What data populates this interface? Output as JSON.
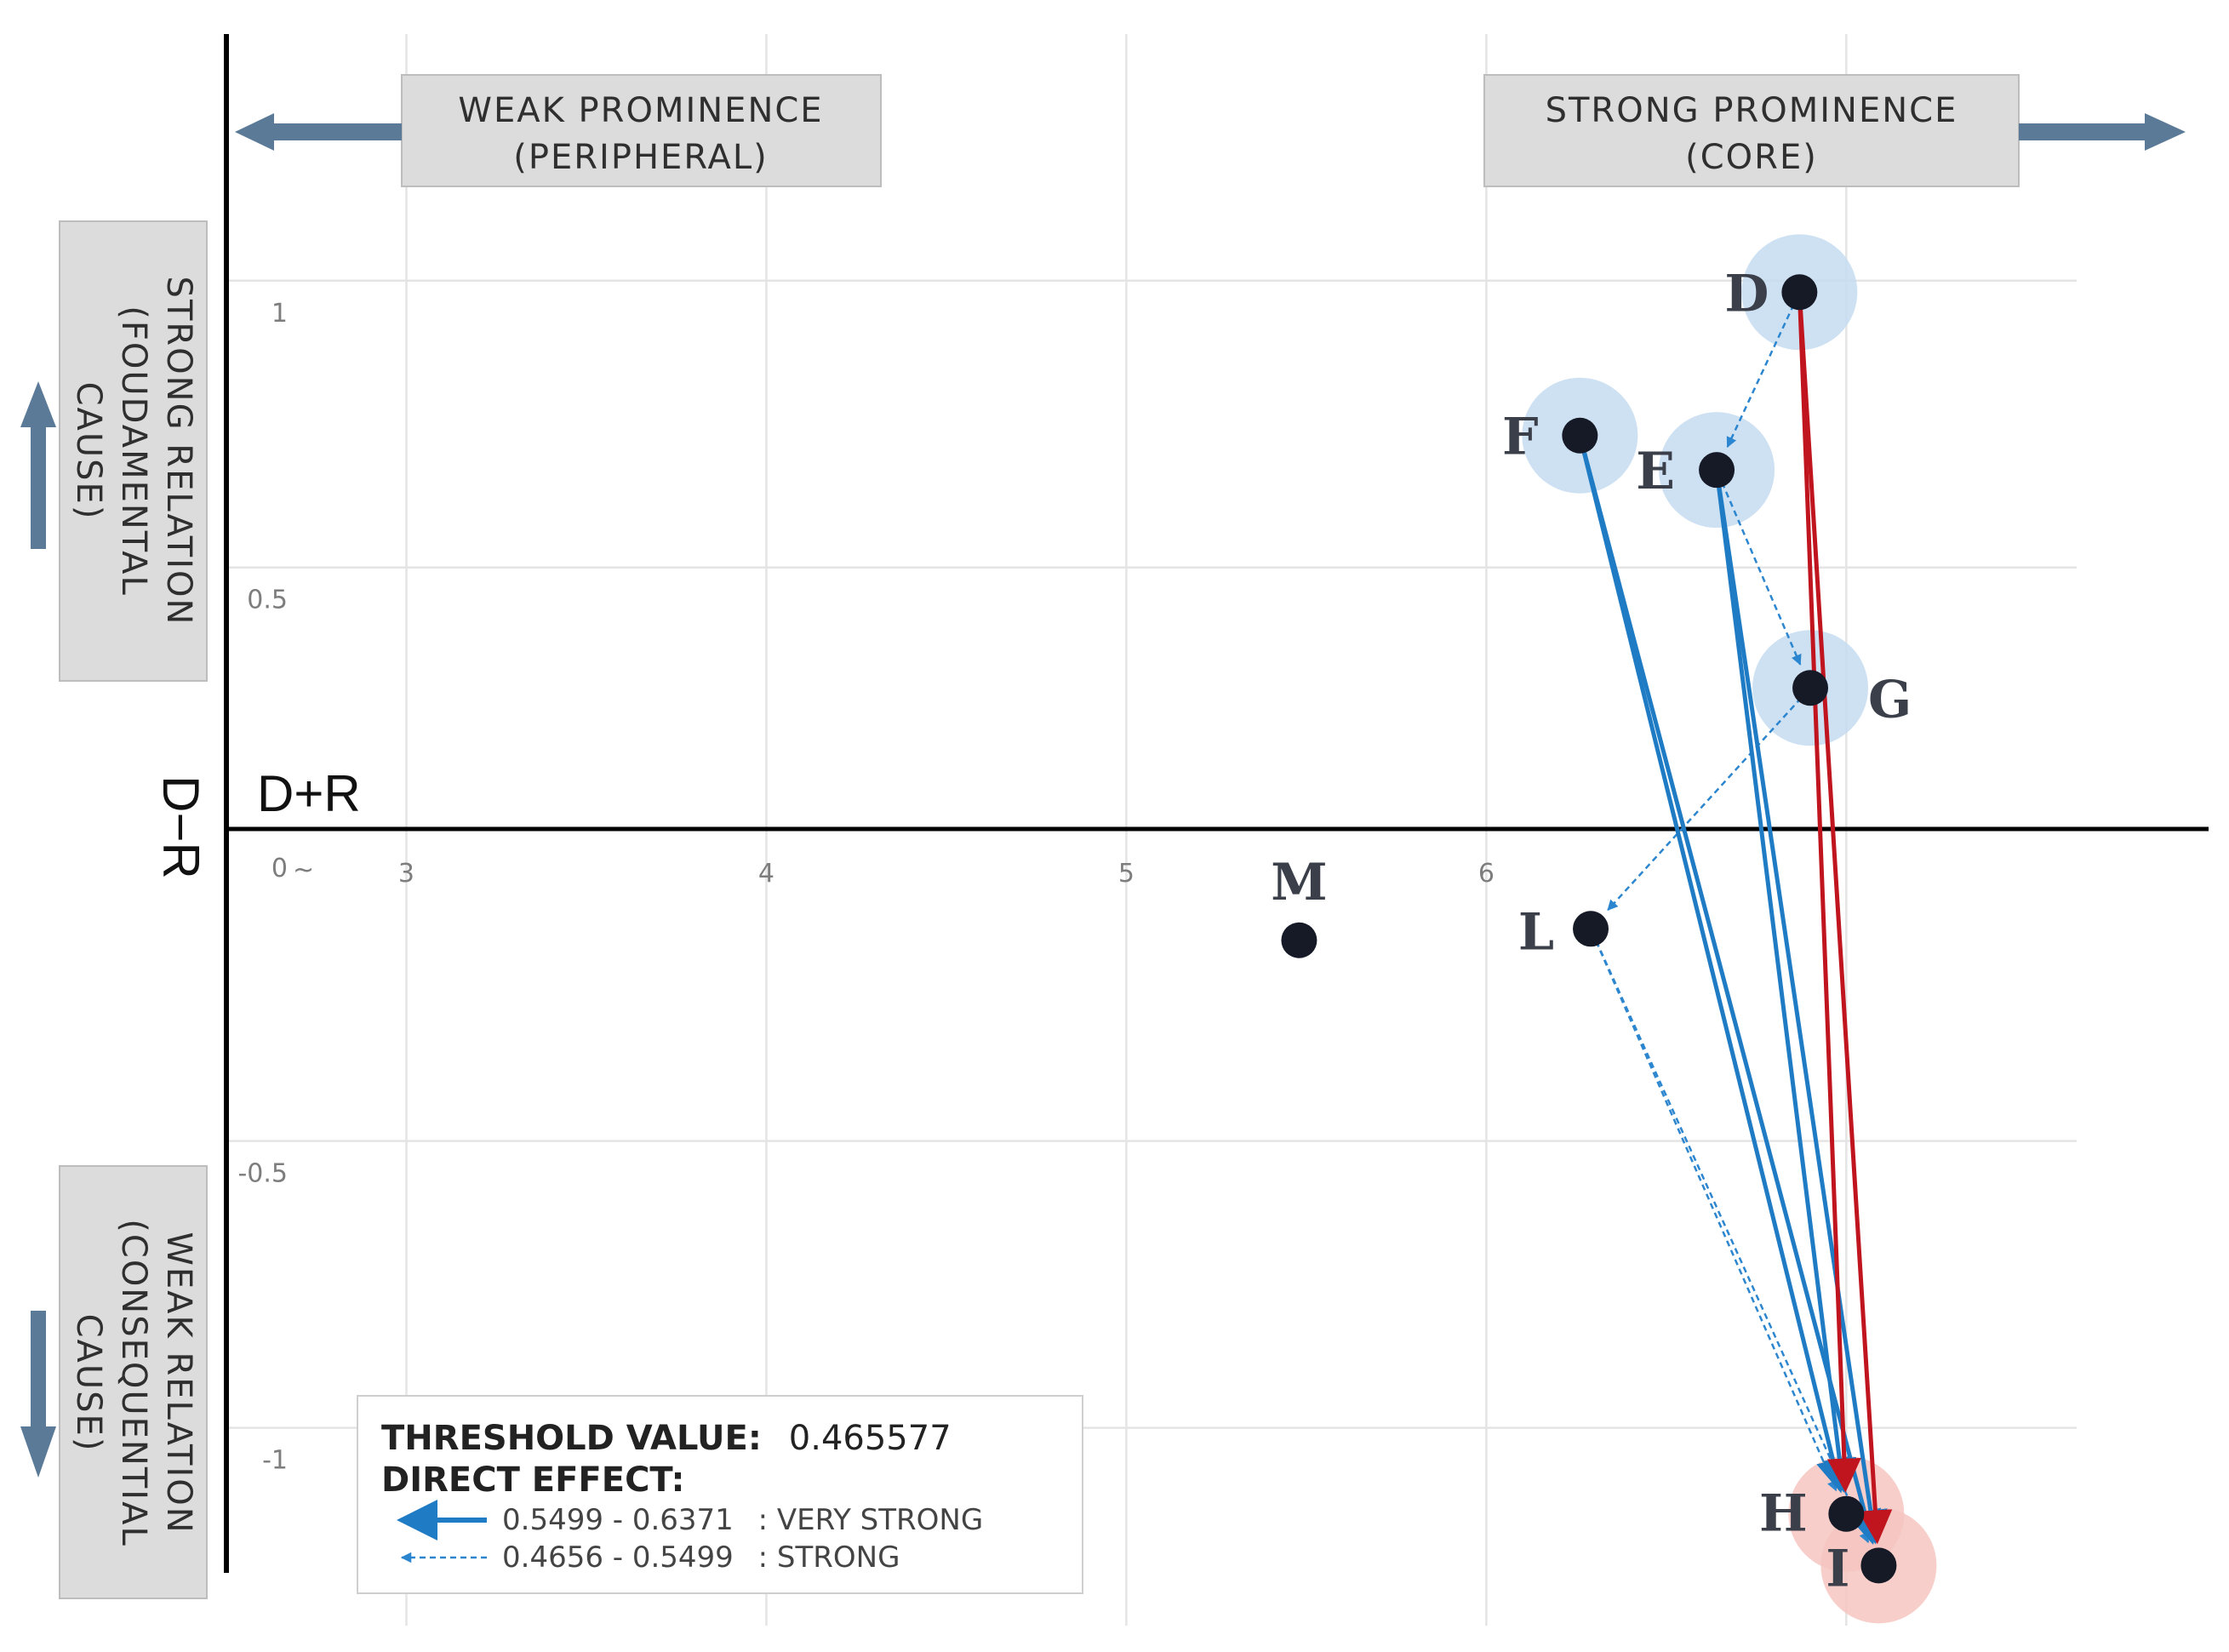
{
  "chart_data": {
    "type": "scatter",
    "title": "",
    "xlabel": "D+R",
    "ylabel": "D−R",
    "xlim": [
      2.5,
      7.9
    ],
    "ylim": [
      -1.33,
      1.43
    ],
    "grid": true,
    "x_ticks": [
      3,
      4,
      5,
      6
    ],
    "x_tick_labels": [
      "3",
      "4",
      "5",
      "6"
    ],
    "y_ticks": [
      1,
      0.5,
      0,
      -0.5,
      -1
    ],
    "y_tick_labels": [
      "1",
      "0.5",
      "0",
      "-0.5",
      "-1"
    ],
    "zero_break_mark": "~",
    "points": [
      {
        "label": "D",
        "x": 6.87,
        "y": 0.98,
        "group": "cause"
      },
      {
        "label": "F",
        "x": 6.26,
        "y": 0.73,
        "group": "cause"
      },
      {
        "label": "E",
        "x": 6.64,
        "y": 0.67,
        "group": "cause"
      },
      {
        "label": "G",
        "x": 6.9,
        "y": 0.29,
        "group": "cause"
      },
      {
        "label": "M",
        "x": 5.48,
        "y": -0.15,
        "group": "none"
      },
      {
        "label": "L",
        "x": 6.29,
        "y": -0.13,
        "group": "none"
      },
      {
        "label": "H",
        "x": 7.0,
        "y": -1.15,
        "group": "effect"
      },
      {
        "label": "I",
        "x": 7.09,
        "y": -1.24,
        "group": "effect"
      }
    ],
    "relations": [
      {
        "from": "D",
        "to": "H",
        "strength": "very_strong",
        "color": "#c0141e"
      },
      {
        "from": "D",
        "to": "I",
        "strength": "very_strong",
        "color": "#c0141e"
      },
      {
        "from": "F",
        "to": "H",
        "strength": "very_strong",
        "color": "#1f7cc4"
      },
      {
        "from": "F",
        "to": "I",
        "strength": "very_strong",
        "color": "#1f7cc4"
      },
      {
        "from": "E",
        "to": "H",
        "strength": "very_strong",
        "color": "#1f7cc4"
      },
      {
        "from": "E",
        "to": "I",
        "strength": "very_strong",
        "color": "#1f7cc4"
      },
      {
        "from": "D",
        "to": "E",
        "strength": "strong",
        "color": "#2c86cf"
      },
      {
        "from": "E",
        "to": "G",
        "strength": "strong",
        "color": "#2c86cf"
      },
      {
        "from": "G",
        "to": "L",
        "strength": "strong",
        "color": "#2c86cf"
      },
      {
        "from": "L",
        "to": "H",
        "strength": "strong",
        "color": "#2c86cf"
      },
      {
        "from": "L",
        "to": "I",
        "strength": "strong",
        "color": "#2c86cf"
      }
    ],
    "legend": {
      "placement": "bottom-left",
      "threshold_label": "THRESHOLD VALUE:",
      "threshold_value": "0.465577",
      "direct_effect_label": "DIRECT EFFECT:",
      "items": [
        {
          "range": "0.5499 - 0.6371",
          "label": ": VERY STRONG",
          "style": "solid"
        },
        {
          "range": "0.4656 - 0.5499",
          "label": ": STRONG",
          "style": "dashed"
        }
      ]
    },
    "quadrant_labels": {
      "weak_prominence": [
        "WEAK PROMINENCE",
        "(PERIPHERAL)"
      ],
      "strong_prominence": [
        "STRONG PROMINENCE",
        "(CORE)"
      ],
      "strong_relation": [
        "STRONG RELATION",
        "(FOUDAMENTAL",
        "CAUSE)"
      ],
      "weak_relation": [
        "WEAK RELATION",
        "(CONSEQUENTIAL",
        "CAUSE)"
      ]
    },
    "colors": {
      "cause_halo": "#c5dcf1",
      "effect_halo": "#f6c5c1",
      "point": "#151a26",
      "very_strong_blue": "#1f7cc4",
      "very_strong_red": "#c0141e",
      "strong_blue": "#2c86cf",
      "quadrant_arrow": "#5a7a97",
      "quadrant_box": "#dcdcdc"
    }
  }
}
